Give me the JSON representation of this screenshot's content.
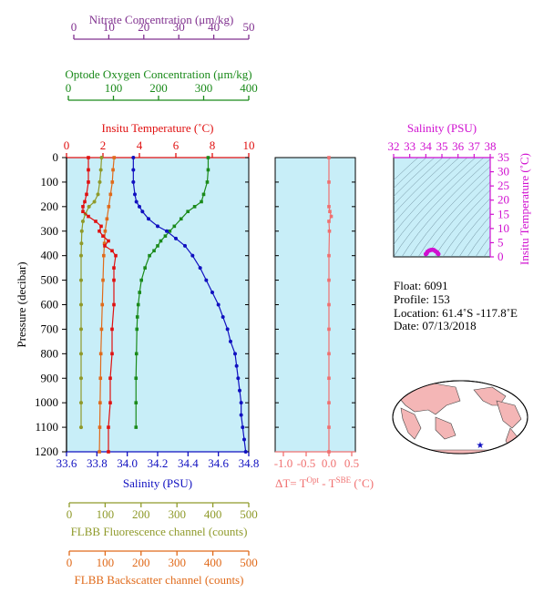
{
  "colors": {
    "nitrate": "#80308f",
    "oxygen": "#1a8a1a",
    "temperature": "#e01010",
    "salinity": "#1010c0",
    "fluorescence": "#8f9a2a",
    "backscatter": "#e06a1a",
    "dt": "#f07070",
    "ts_axis": "#d010d0",
    "panel_bg": "#c8eef8",
    "land": "#f4b6b6"
  },
  "axes": {
    "nitrate": {
      "label": "Nitrate Concentration (μm/kg)",
      "ticks": [
        "0",
        "10",
        "20",
        "30",
        "40",
        "50"
      ],
      "range": [
        0,
        50
      ]
    },
    "oxygen": {
      "label": "Optode Oxygen Concentration (μm/kg)",
      "ticks": [
        "0",
        "100",
        "200",
        "300",
        "400"
      ],
      "range": [
        0,
        400
      ]
    },
    "temperature": {
      "label": "Insitu Temperature (˚C)",
      "ticks": [
        "0",
        "2",
        "4",
        "6",
        "8",
        "10"
      ],
      "range": [
        0,
        10
      ]
    },
    "salinity": {
      "label": "Salinity (PSU)",
      "ticks": [
        "33.6",
        "33.8",
        "34.0",
        "34.2",
        "34.4",
        "34.6",
        "34.8"
      ],
      "range": [
        33.6,
        34.8
      ]
    },
    "pressure": {
      "label": "Pressure (decibar)",
      "ticks": [
        "0",
        "100",
        "200",
        "300",
        "400",
        "500",
        "600",
        "700",
        "800",
        "900",
        "1000",
        "1100",
        "1200"
      ],
      "range": [
        0,
        1200
      ]
    },
    "fluorescence": {
      "label": "FLBB Fluorescence channel (counts)",
      "ticks": [
        "0",
        "100",
        "200",
        "300",
        "400",
        "500"
      ],
      "range": [
        0,
        500
      ]
    },
    "backscatter": {
      "label": "FLBB Backscatter channel (counts)",
      "ticks": [
        "0",
        "100",
        "200",
        "300",
        "400",
        "500"
      ],
      "range": [
        0,
        500
      ]
    },
    "dt": {
      "label_prefix": "ΔT= T",
      "sup1": "Opt",
      "label_mid": " - T",
      "sup2": "SBE",
      "label_suffix": " (˚C)",
      "ticks": [
        "-1.0",
        "-0.5",
        "0.0",
        "0.5"
      ],
      "range": [
        -1.0,
        0.5
      ]
    },
    "ts_salinity": {
      "label": "Salinity (PSU)",
      "ticks": [
        "32",
        "33",
        "34",
        "35",
        "36",
        "37",
        "38"
      ],
      "range": [
        32,
        38
      ]
    },
    "ts_temperature": {
      "label": "Insitu Temperature (˚C)",
      "ticks": [
        "0",
        "5",
        "10",
        "15",
        "20",
        "25",
        "30",
        "35"
      ],
      "range": [
        0,
        35
      ]
    }
  },
  "info": {
    "float": "Float:  6091",
    "profile": "Profile:  153",
    "location": "Location:  61.4˚S  -117.8˚E",
    "date": "Date:  07/13/2018"
  },
  "chart_data": [
    {
      "type": "line",
      "name": "Insitu Temperature",
      "axis": "temperature",
      "points": [
        [
          1.2,
          0
        ],
        [
          1.2,
          50
        ],
        [
          1.2,
          100
        ],
        [
          1.1,
          150
        ],
        [
          1.0,
          180
        ],
        [
          0.9,
          200
        ],
        [
          0.9,
          220
        ],
        [
          1.2,
          240
        ],
        [
          1.6,
          260
        ],
        [
          1.9,
          280
        ],
        [
          1.8,
          300
        ],
        [
          2.0,
          320
        ],
        [
          2.3,
          340
        ],
        [
          2.1,
          360
        ],
        [
          2.5,
          380
        ],
        [
          2.7,
          400
        ],
        [
          2.6,
          450
        ],
        [
          2.6,
          500
        ],
        [
          2.6,
          600
        ],
        [
          2.5,
          700
        ],
        [
          2.5,
          800
        ],
        [
          2.4,
          900
        ],
        [
          2.4,
          1000
        ],
        [
          2.3,
          1100
        ],
        [
          2.3,
          1200
        ]
      ]
    },
    {
      "type": "line",
      "name": "Salinity",
      "axis": "salinity",
      "points": [
        [
          34.04,
          0
        ],
        [
          34.04,
          50
        ],
        [
          34.04,
          100
        ],
        [
          34.05,
          150
        ],
        [
          34.06,
          180
        ],
        [
          34.08,
          200
        ],
        [
          34.1,
          220
        ],
        [
          34.14,
          250
        ],
        [
          34.2,
          280
        ],
        [
          34.26,
          300
        ],
        [
          34.32,
          330
        ],
        [
          34.38,
          360
        ],
        [
          34.43,
          400
        ],
        [
          34.48,
          450
        ],
        [
          34.52,
          500
        ],
        [
          34.56,
          550
        ],
        [
          34.6,
          600
        ],
        [
          34.63,
          650
        ],
        [
          34.66,
          700
        ],
        [
          34.68,
          750
        ],
        [
          34.71,
          800
        ],
        [
          34.72,
          850
        ],
        [
          34.73,
          900
        ],
        [
          34.74,
          950
        ],
        [
          34.75,
          1000
        ],
        [
          34.75,
          1050
        ],
        [
          34.76,
          1100
        ],
        [
          34.77,
          1150
        ],
        [
          34.78,
          1200
        ]
      ]
    },
    {
      "type": "line",
      "name": "Optode Oxygen",
      "axis": "oxygen",
      "points": [
        [
          310,
          0
        ],
        [
          310,
          50
        ],
        [
          308,
          100
        ],
        [
          300,
          150
        ],
        [
          295,
          180
        ],
        [
          280,
          200
        ],
        [
          265,
          220
        ],
        [
          250,
          250
        ],
        [
          235,
          280
        ],
        [
          225,
          300
        ],
        [
          215,
          320
        ],
        [
          205,
          340
        ],
        [
          198,
          360
        ],
        [
          190,
          380
        ],
        [
          180,
          400
        ],
        [
          170,
          450
        ],
        [
          162,
          500
        ],
        [
          158,
          550
        ],
        [
          155,
          600
        ],
        [
          153,
          650
        ],
        [
          152,
          700
        ],
        [
          151,
          800
        ],
        [
          150,
          900
        ],
        [
          150,
          1000
        ],
        [
          150,
          1100
        ]
      ]
    },
    {
      "type": "line",
      "name": "FLBB Fluorescence",
      "axis": "fluorescence",
      "points": [
        [
          90,
          0
        ],
        [
          88,
          50
        ],
        [
          85,
          100
        ],
        [
          80,
          150
        ],
        [
          70,
          180
        ],
        [
          55,
          200
        ],
        [
          45,
          230
        ],
        [
          38,
          260
        ],
        [
          35,
          300
        ],
        [
          34,
          350
        ],
        [
          33,
          400
        ],
        [
          33,
          500
        ],
        [
          33,
          600
        ],
        [
          33,
          700
        ],
        [
          33,
          800
        ],
        [
          33,
          900
        ],
        [
          33,
          1000
        ],
        [
          33,
          1100
        ]
      ]
    },
    {
      "type": "line",
      "name": "FLBB Backscatter",
      "axis": "backscatter",
      "points": [
        [
          125,
          0
        ],
        [
          122,
          50
        ],
        [
          120,
          100
        ],
        [
          115,
          150
        ],
        [
          110,
          200
        ],
        [
          105,
          250
        ],
        [
          100,
          300
        ],
        [
          98,
          350
        ],
        [
          96,
          400
        ],
        [
          94,
          500
        ],
        [
          92,
          600
        ],
        [
          90,
          700
        ],
        [
          88,
          800
        ],
        [
          87,
          900
        ],
        [
          86,
          1000
        ],
        [
          85,
          1100
        ],
        [
          84,
          1200
        ]
      ]
    },
    {
      "type": "line",
      "name": "Delta T",
      "axis": "dt",
      "points": [
        [
          0.0,
          0
        ],
        [
          0.0,
          100
        ],
        [
          0.0,
          200
        ],
        [
          0.02,
          220
        ],
        [
          0.05,
          240
        ],
        [
          0.0,
          260
        ],
        [
          0.01,
          300
        ],
        [
          0.0,
          400
        ],
        [
          0.0,
          500
        ],
        [
          0.0,
          600
        ],
        [
          0.0,
          700
        ],
        [
          0.0,
          800
        ],
        [
          0.0,
          900
        ],
        [
          0.0,
          1000
        ],
        [
          0.0,
          1100
        ],
        [
          0.0,
          1200
        ]
      ]
    },
    {
      "type": "scatter",
      "name": "T-S diagram",
      "axis": "ts",
      "points": [
        [
          34.0,
          1.0
        ],
        [
          34.05,
          1.2
        ],
        [
          34.1,
          1.8
        ],
        [
          34.2,
          2.2
        ],
        [
          34.3,
          2.4
        ],
        [
          34.4,
          2.5
        ],
        [
          34.5,
          2.4
        ],
        [
          34.6,
          2.0
        ],
        [
          34.7,
          1.6
        ],
        [
          34.75,
          1.2
        ],
        [
          34.78,
          1.0
        ]
      ]
    }
  ]
}
